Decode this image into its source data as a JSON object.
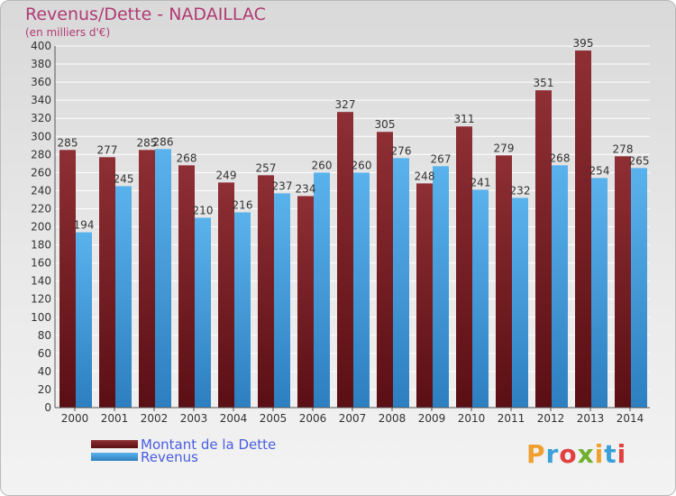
{
  "title": "Revenus/Dette - NADAILLAC",
  "subtitle": "(en milliers d'€)",
  "logo": "Proxiti",
  "colors": {
    "dette": "#7a1f24",
    "revenus": "#3e9ad8",
    "title": "#b03a73",
    "legend_text": "#4a5de0"
  },
  "chart_data": {
    "type": "bar",
    "title": "Revenus/Dette - NADAILLAC",
    "subtitle": "(en milliers d'€)",
    "categories": [
      "2000",
      "2001",
      "2002",
      "2003",
      "2004",
      "2005",
      "2006",
      "2007",
      "2008",
      "2009",
      "2010",
      "2011",
      "2012",
      "2013",
      "2014"
    ],
    "series": [
      {
        "name": "Montant de la Dette",
        "values": [
          285,
          277,
          285,
          268,
          249,
          257,
          234,
          327,
          305,
          248,
          311,
          279,
          351,
          395,
          278
        ]
      },
      {
        "name": "Revenus",
        "values": [
          194,
          245,
          286,
          210,
          216,
          237,
          260,
          260,
          276,
          267,
          241,
          232,
          268,
          254,
          265
        ]
      }
    ],
    "ylim": [
      0,
      400
    ],
    "ytick_step": 20,
    "grid": true,
    "legend": "bottom-left"
  }
}
